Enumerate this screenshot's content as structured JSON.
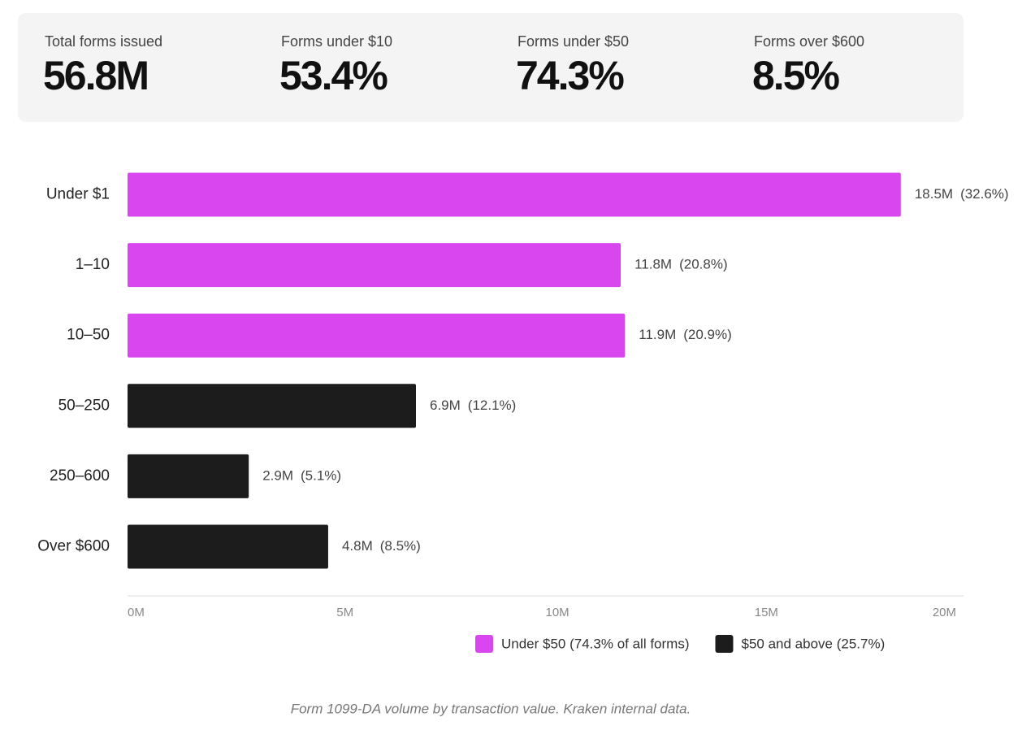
{
  "stats": [
    {
      "label": "Total forms issued",
      "value": "56.8M"
    },
    {
      "label": "Forms under $10",
      "value": "53.4%"
    },
    {
      "label": "Forms under $50",
      "value": "74.3%"
    },
    {
      "label": "Forms over $600",
      "value": "8.5%"
    }
  ],
  "chart_data": {
    "type": "bar",
    "orientation": "horizontal",
    "categories": [
      "Under $1",
      "1–10",
      "10–50",
      "50–250",
      "250–600",
      "Over $600"
    ],
    "values": [
      18.5,
      11.8,
      11.9,
      6.9,
      2.9,
      4.8
    ],
    "value_labels": [
      "18.5M",
      "11.8M",
      "11.9M",
      "6.9M",
      "2.9M",
      "4.8M"
    ],
    "shares": [
      32.6,
      20.8,
      20.9,
      12.1,
      5.1,
      8.5
    ],
    "share_labels": [
      "(32.6%)",
      "(20.8%)",
      "(20.9%)",
      "(12.1%)",
      "(5.1%)",
      "(8.5%)"
    ],
    "colors": [
      "#d946ef",
      "#d946ef",
      "#d946ef",
      "#1c1c1c",
      "#1c1c1c",
      "#1c1c1c"
    ],
    "xlim": [
      0,
      20
    ],
    "xticks": [
      {
        "value": 0,
        "label": "0M"
      },
      {
        "value": 5,
        "label": "5M"
      },
      {
        "value": 10,
        "label": "10M"
      },
      {
        "value": 15,
        "label": "15M"
      },
      {
        "value": 20,
        "label": "20M"
      }
    ],
    "legend": [
      {
        "name": "Under $50 (74.3% of all forms)",
        "color": "#d946ef"
      },
      {
        "name": "$50 and above (25.7%)",
        "color": "#1c1c1c"
      }
    ],
    "caption": "Form 1099-DA volume by transaction value. Kraken internal data."
  }
}
